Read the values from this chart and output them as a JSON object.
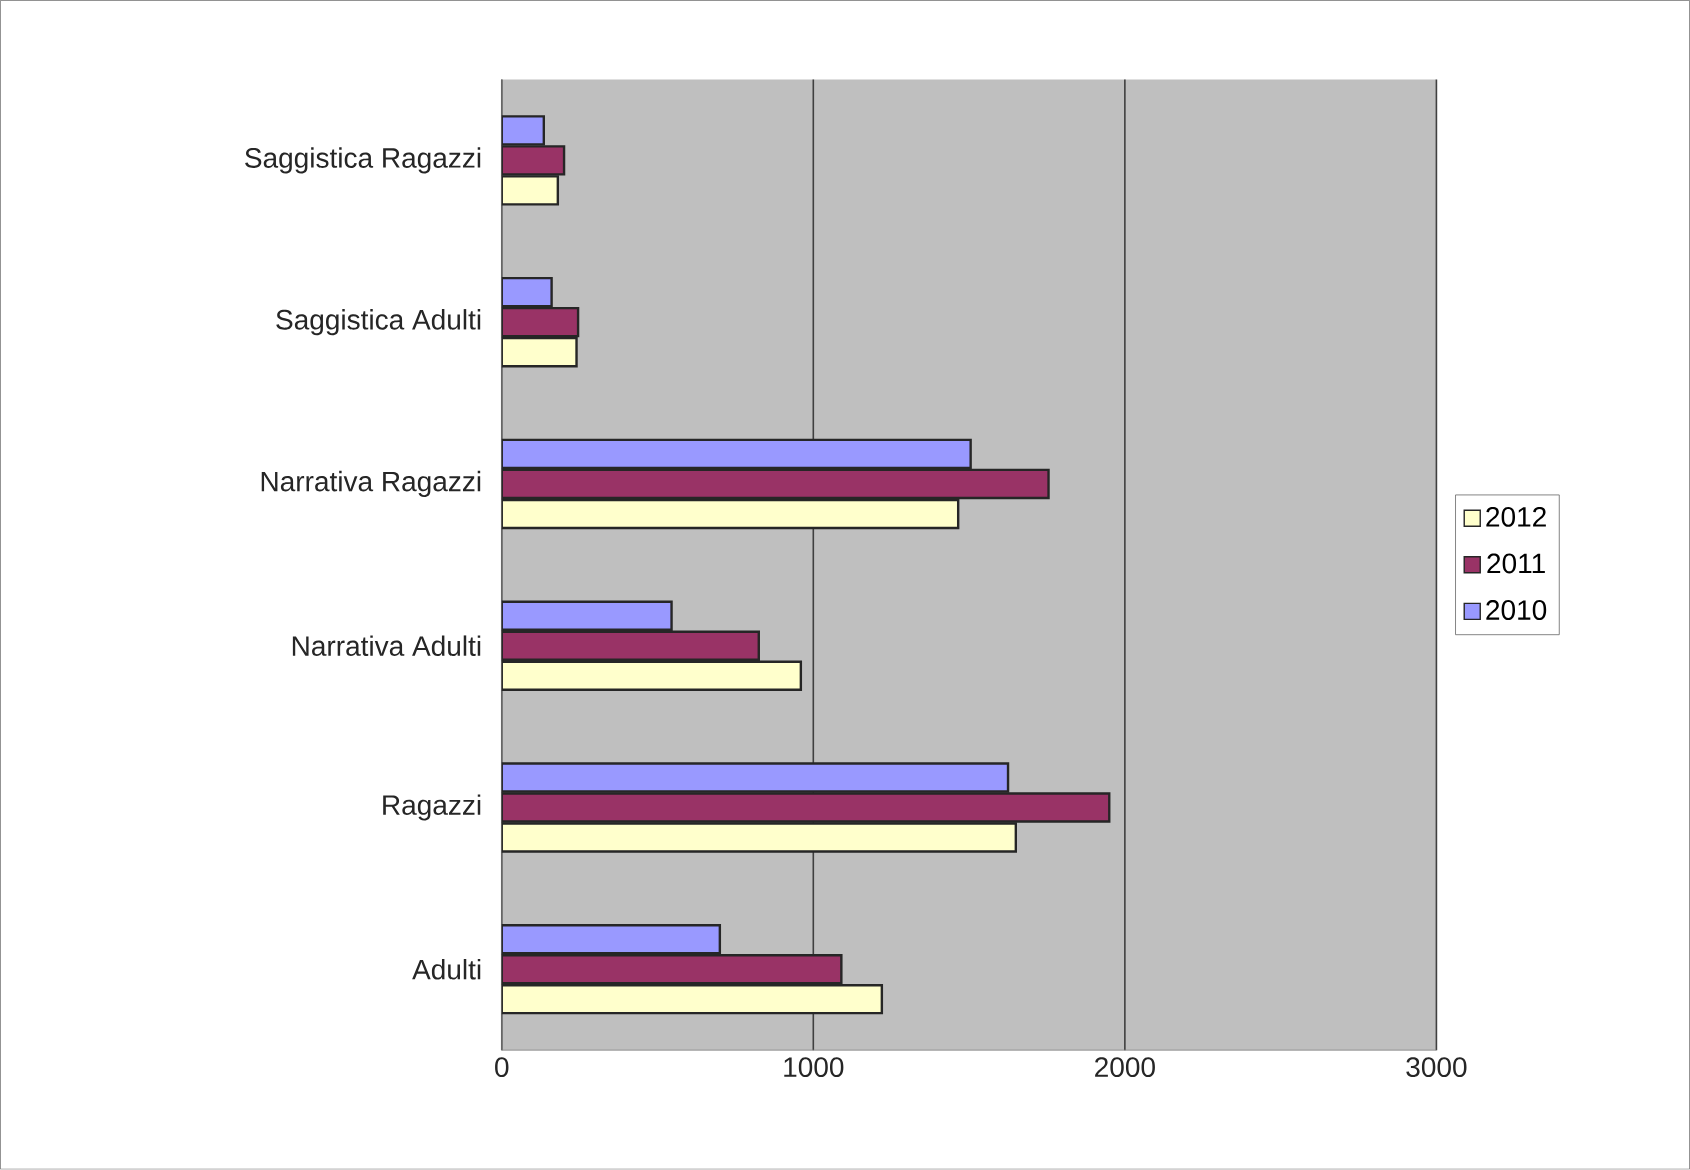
{
  "chart_data": {
    "type": "bar",
    "orientation": "horizontal",
    "categories": [
      "Saggistica Ragazzi",
      "Saggistica Adulti",
      "Narrativa Ragazzi",
      "Narrativa Adulti",
      "Ragazzi",
      "Adulti"
    ],
    "series": [
      {
        "name": "2012",
        "color": "#ffffcc",
        "values": [
          180,
          240,
          1465,
          960,
          1650,
          1220
        ]
      },
      {
        "name": "2011",
        "color": "#993366",
        "values": [
          200,
          245,
          1755,
          825,
          1950,
          1090
        ]
      },
      {
        "name": "2010",
        "color": "#9999ff",
        "values": [
          135,
          160,
          1505,
          545,
          1625,
          700
        ]
      }
    ],
    "xlim": [
      0,
      3000
    ],
    "xticks": [
      0,
      1000,
      2000,
      3000
    ],
    "grid": "x",
    "legend": "right"
  }
}
